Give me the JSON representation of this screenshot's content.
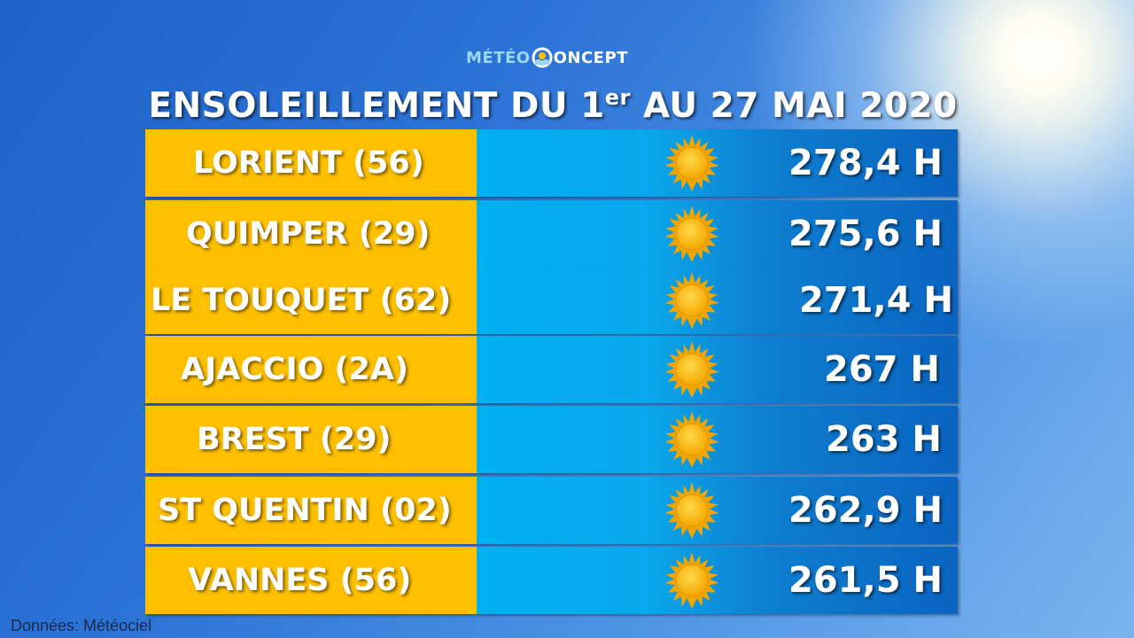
{
  "logo": {
    "part1": "MÉTÉO",
    "part2": "ONCEPT"
  },
  "title": {
    "main": "ENSOLEILLEMENT DU 1",
    "sup": "er",
    "rest": " AU 27 MAI 2020"
  },
  "rows": [
    {
      "city": "LORIENT (56)",
      "hours": "278,4 H",
      "icon": "sun-icon"
    },
    {
      "city": "QUIMPER (29)",
      "hours": "275,6 H",
      "icon": "sun-icon"
    },
    {
      "city": "LE TOUQUET (62)",
      "hours": "271,4 H",
      "icon": "sun-icon"
    },
    {
      "city": "AJACCIO (2A)",
      "hours": "267 H",
      "icon": "sun-icon"
    },
    {
      "city": "BREST (29)",
      "hours": "263 H",
      "icon": "sun-icon"
    },
    {
      "city": "ST QUENTIN (02)",
      "hours": "262,9 H",
      "icon": "sun-icon"
    },
    {
      "city": "VANNES (56)",
      "hours": "261,5 H",
      "icon": "sun-icon"
    }
  ],
  "source": "Données: Météociel",
  "colors": {
    "city_box": "#ffc000",
    "bar_start": "#00b0f0",
    "bar_end": "#0a64c0",
    "sun": "#ffc000"
  }
}
